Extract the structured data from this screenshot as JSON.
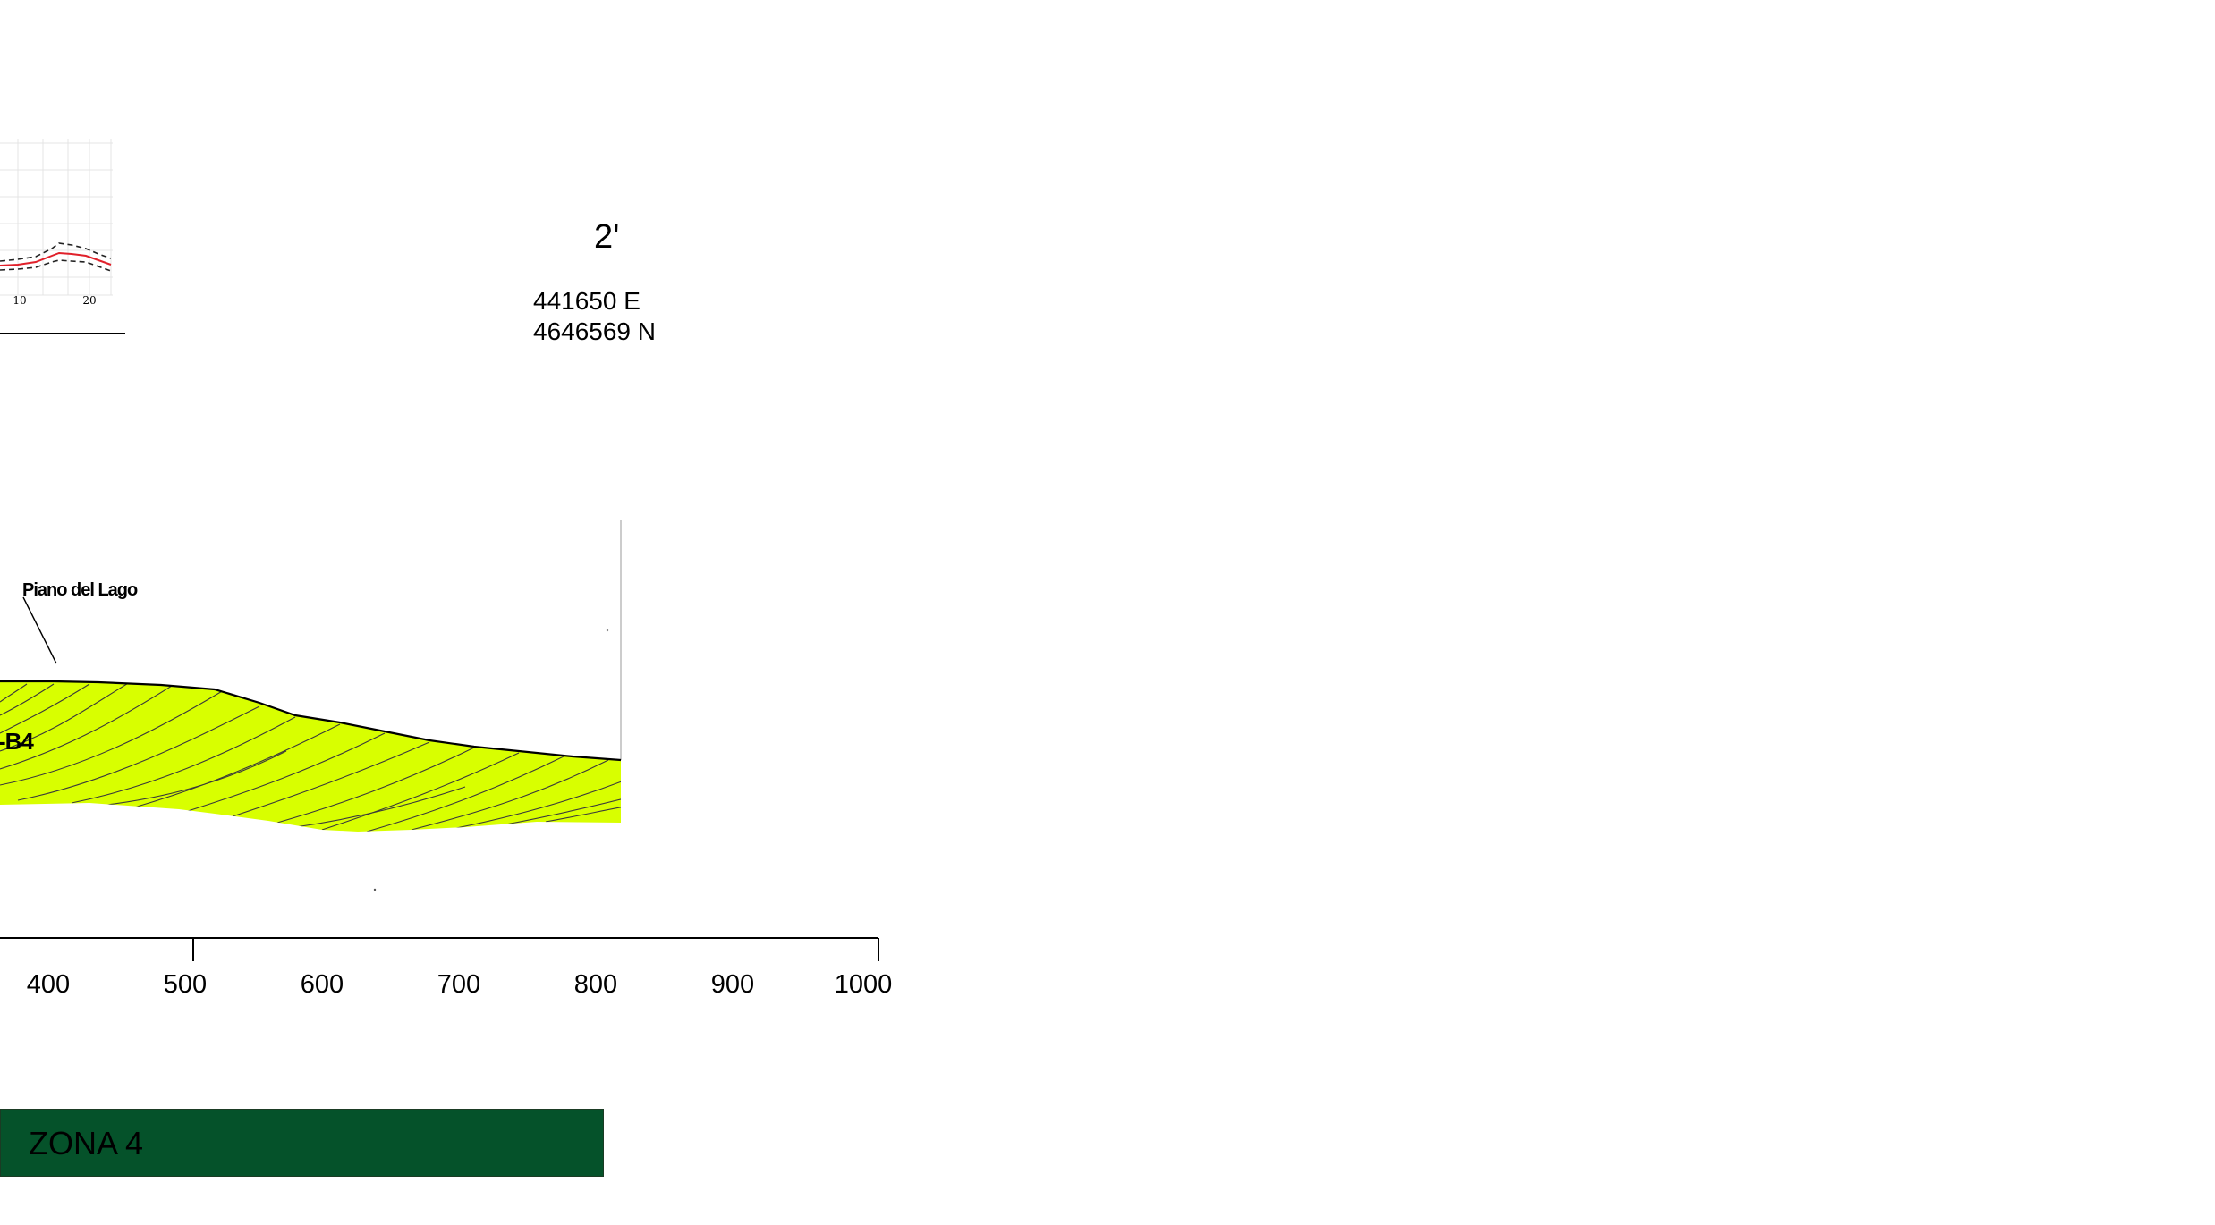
{
  "section": {
    "label": "2'",
    "easting": "441650 E",
    "northing": "4646569 N"
  },
  "profile": {
    "annotation": "Piano del Lago",
    "unit_label": "-B4",
    "fill_color": "#d8ff00"
  },
  "distance_axis": {
    "ticks": [
      "400",
      "500",
      "600",
      "700",
      "800",
      "900",
      "1000"
    ]
  },
  "inset_chart": {
    "ticks": [
      "10",
      "20"
    ]
  },
  "zone": {
    "label": "ZONA 4",
    "color": "#05522a"
  }
}
